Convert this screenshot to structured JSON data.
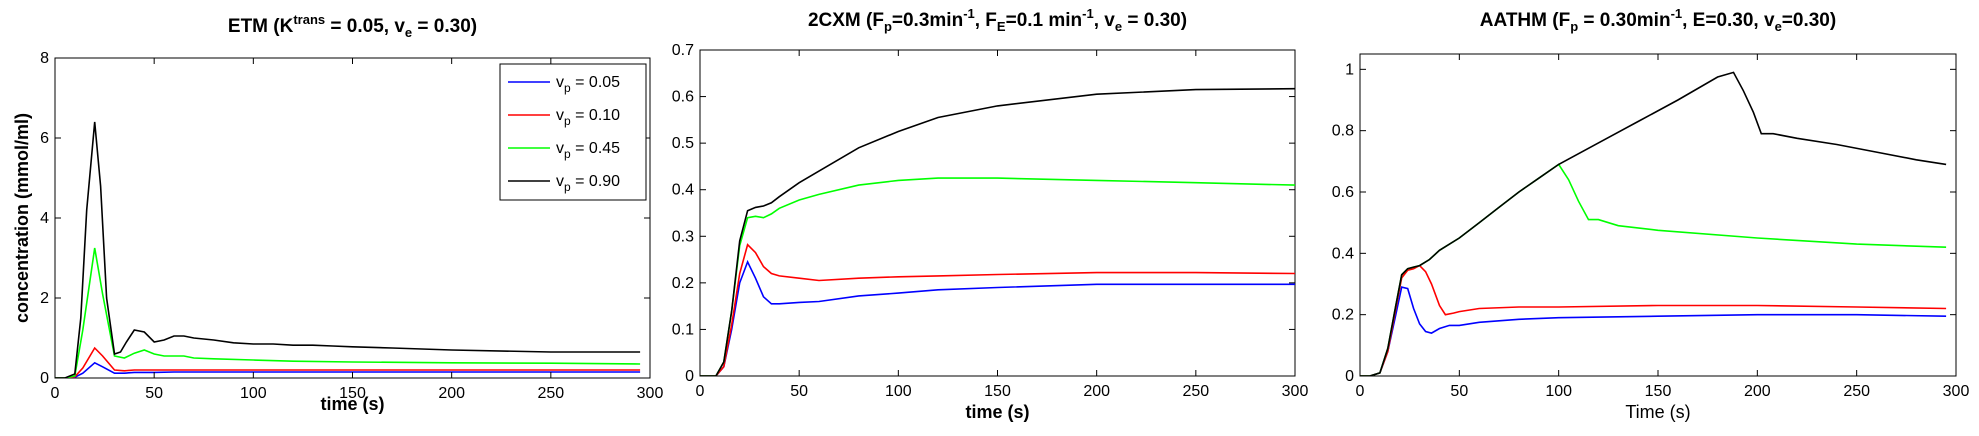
{
  "chart_data": [
    {
      "type": "line",
      "title_parts": [
        "ETM  (K",
        "trans",
        " = 0.05, v",
        "e",
        " = 0.30)"
      ],
      "xlabel": "time (s)",
      "ylabel": "concentration (mmol/ml)",
      "xlim": [
        0,
        300
      ],
      "ylim": [
        0,
        8
      ],
      "xticks": [
        0,
        50,
        100,
        150,
        200,
        250,
        300
      ],
      "yticks": [
        0,
        2,
        4,
        6,
        8
      ],
      "xtick_labels": [
        "0",
        "50",
        "100",
        "150",
        "200",
        "250",
        "300"
      ],
      "ytick_labels": [
        "0",
        "2",
        "4",
        "6",
        "8"
      ],
      "legend": {
        "placement": "top-right",
        "entries": [
          {
            "base": "v",
            "sub": "p",
            "rest": " = 0.05",
            "color": "#0000ff"
          },
          {
            "base": "v",
            "sub": "p",
            "rest": " = 0.10",
            "color": "#ff0000"
          },
          {
            "base": "v",
            "sub": "p",
            "rest": " = 0.45",
            "color": "#00ff00"
          },
          {
            "base": "v",
            "sub": "p",
            "rest": " = 0.90",
            "color": "#000000"
          }
        ]
      },
      "series": [
        {
          "name": "vp = 0.05",
          "color": "#0000ff",
          "x": [
            0,
            5,
            10,
            14,
            20,
            24,
            30,
            35,
            40,
            50,
            60,
            80,
            100,
            150,
            200,
            250,
            295
          ],
          "y": [
            0,
            0,
            0.02,
            0.12,
            0.38,
            0.28,
            0.12,
            0.12,
            0.14,
            0.14,
            0.15,
            0.15,
            0.15,
            0.15,
            0.15,
            0.15,
            0.15
          ]
        },
        {
          "name": "vp = 0.10",
          "color": "#ff0000",
          "x": [
            0,
            5,
            10,
            14,
            20,
            24,
            30,
            35,
            40,
            50,
            60,
            80,
            100,
            150,
            200,
            250,
            295
          ],
          "y": [
            0,
            0,
            0.03,
            0.25,
            0.75,
            0.55,
            0.2,
            0.18,
            0.2,
            0.2,
            0.2,
            0.2,
            0.2,
            0.2,
            0.2,
            0.2,
            0.2
          ]
        },
        {
          "name": "vp = 0.45",
          "color": "#00ff00",
          "x": [
            0,
            5,
            10,
            14,
            20,
            24,
            30,
            35,
            40,
            45,
            50,
            55,
            60,
            65,
            70,
            80,
            100,
            120,
            150,
            200,
            250,
            295
          ],
          "y": [
            0,
            0,
            0.05,
            1.2,
            3.25,
            2.1,
            0.55,
            0.5,
            0.62,
            0.7,
            0.6,
            0.55,
            0.55,
            0.55,
            0.5,
            0.48,
            0.45,
            0.42,
            0.4,
            0.38,
            0.37,
            0.35
          ]
        },
        {
          "name": "vp = 0.90",
          "color": "#000000",
          "x": [
            0,
            5,
            10,
            13,
            16,
            20,
            23,
            26,
            30,
            33,
            36,
            40,
            45,
            50,
            55,
            60,
            65,
            70,
            80,
            90,
            100,
            110,
            120,
            130,
            140,
            150,
            170,
            200,
            250,
            295
          ],
          "y": [
            0,
            0,
            0.1,
            1.5,
            4.2,
            6.4,
            4.8,
            2.0,
            0.6,
            0.65,
            0.9,
            1.2,
            1.15,
            0.9,
            0.95,
            1.05,
            1.05,
            1.0,
            0.95,
            0.88,
            0.85,
            0.85,
            0.82,
            0.82,
            0.8,
            0.78,
            0.75,
            0.7,
            0.65,
            0.65
          ]
        }
      ]
    },
    {
      "type": "line",
      "title_parts": [
        "2CXM   (F",
        "p",
        "=0.3min",
        "-1",
        ", F",
        "E",
        "=0.1 min",
        "-1",
        ", v",
        "e",
        " = 0.30)"
      ],
      "xlabel": "time (s)",
      "ylabel": "",
      "xlim": [
        0,
        300
      ],
      "ylim": [
        0,
        0.7
      ],
      "xticks": [
        0,
        50,
        100,
        150,
        200,
        250,
        300
      ],
      "yticks": [
        0,
        0.1,
        0.2,
        0.3,
        0.4,
        0.5,
        0.6,
        0.7
      ],
      "xtick_labels": [
        "0",
        "50",
        "100",
        "150",
        "200",
        "250",
        "300"
      ],
      "ytick_labels": [
        "0",
        "0.1",
        "0.2",
        "0.3",
        "0.4",
        "0.5",
        "0.6",
        "0.7"
      ],
      "series": [
        {
          "name": "vp = 0.05",
          "color": "#0000ff",
          "x": [
            0,
            8,
            12,
            16,
            20,
            24,
            28,
            32,
            36,
            40,
            50,
            60,
            80,
            100,
            120,
            150,
            200,
            250,
            300
          ],
          "y": [
            0,
            0,
            0.02,
            0.1,
            0.2,
            0.245,
            0.21,
            0.17,
            0.155,
            0.155,
            0.158,
            0.16,
            0.172,
            0.178,
            0.185,
            0.19,
            0.197,
            0.197,
            0.197
          ]
        },
        {
          "name": "vp = 0.10",
          "color": "#ff0000",
          "x": [
            0,
            8,
            12,
            16,
            20,
            24,
            28,
            32,
            36,
            40,
            50,
            60,
            80,
            100,
            120,
            150,
            200,
            250,
            300
          ],
          "y": [
            0,
            0,
            0.02,
            0.11,
            0.22,
            0.282,
            0.265,
            0.235,
            0.22,
            0.215,
            0.21,
            0.205,
            0.21,
            0.213,
            0.215,
            0.218,
            0.222,
            0.222,
            0.22
          ]
        },
        {
          "name": "vp = 0.45",
          "color": "#00ff00",
          "x": [
            0,
            8,
            12,
            16,
            20,
            24,
            28,
            32,
            36,
            40,
            50,
            60,
            80,
            100,
            120,
            150,
            200,
            250,
            300
          ],
          "y": [
            0,
            0,
            0.03,
            0.14,
            0.28,
            0.34,
            0.343,
            0.34,
            0.348,
            0.36,
            0.378,
            0.39,
            0.41,
            0.42,
            0.425,
            0.425,
            0.42,
            0.415,
            0.41
          ]
        },
        {
          "name": "vp = 0.90",
          "color": "#000000",
          "x": [
            0,
            8,
            12,
            16,
            20,
            24,
            28,
            32,
            36,
            40,
            50,
            60,
            80,
            100,
            120,
            150,
            200,
            250,
            300
          ],
          "y": [
            0,
            0,
            0.03,
            0.14,
            0.29,
            0.355,
            0.362,
            0.365,
            0.372,
            0.385,
            0.415,
            0.44,
            0.49,
            0.525,
            0.555,
            0.58,
            0.605,
            0.615,
            0.617
          ]
        }
      ]
    },
    {
      "type": "line",
      "title_parts": [
        "AATHM   (F",
        "p",
        " = 0.30min",
        "-1",
        ",  E=0.30,  v",
        "e",
        "=0.30)"
      ],
      "xlabel": "Time (s)",
      "ylabel": "",
      "xlim": [
        0,
        300
      ],
      "ylim": [
        0,
        1.05
      ],
      "xticks": [
        0,
        50,
        100,
        150,
        200,
        250,
        300
      ],
      "yticks": [
        0,
        0.2,
        0.4,
        0.6,
        0.8,
        1
      ],
      "xtick_labels": [
        "0",
        "50",
        "100",
        "150",
        "200",
        "250",
        "300"
      ],
      "ytick_labels": [
        "0",
        "0.2",
        "0.4",
        "0.6",
        "0.8",
        "1"
      ],
      "series": [
        {
          "name": "vp = 0.05",
          "color": "#0000ff",
          "x": [
            0,
            5,
            10,
            14,
            18,
            21,
            24,
            27,
            30,
            33,
            36,
            40,
            45,
            50,
            60,
            80,
            100,
            150,
            200,
            250,
            295
          ],
          "y": [
            0,
            0,
            0.01,
            0.08,
            0.2,
            0.29,
            0.285,
            0.22,
            0.17,
            0.145,
            0.14,
            0.155,
            0.165,
            0.165,
            0.175,
            0.185,
            0.19,
            0.195,
            0.2,
            0.2,
            0.195
          ]
        },
        {
          "name": "vp = 0.10",
          "color": "#ff0000",
          "x": [
            0,
            5,
            10,
            14,
            18,
            21,
            24,
            27,
            30,
            33,
            36,
            40,
            43,
            47,
            50,
            60,
            80,
            100,
            150,
            200,
            250,
            295
          ],
          "y": [
            0,
            0,
            0.01,
            0.08,
            0.22,
            0.32,
            0.345,
            0.35,
            0.36,
            0.34,
            0.3,
            0.23,
            0.2,
            0.205,
            0.21,
            0.22,
            0.225,
            0.225,
            0.23,
            0.23,
            0.225,
            0.22
          ]
        },
        {
          "name": "vp = 0.45",
          "color": "#00ff00",
          "x": [
            0,
            5,
            10,
            14,
            18,
            21,
            24,
            27,
            30,
            35,
            40,
            50,
            60,
            70,
            80,
            90,
            100,
            105,
            110,
            115,
            120,
            130,
            150,
            200,
            250,
            295
          ],
          "y": [
            0,
            0,
            0.01,
            0.09,
            0.23,
            0.33,
            0.35,
            0.355,
            0.36,
            0.38,
            0.41,
            0.45,
            0.5,
            0.55,
            0.6,
            0.645,
            0.69,
            0.64,
            0.57,
            0.51,
            0.51,
            0.49,
            0.475,
            0.45,
            0.43,
            0.42
          ]
        },
        {
          "name": "vp = 0.90",
          "color": "#000000",
          "x": [
            0,
            5,
            10,
            14,
            18,
            21,
            24,
            27,
            30,
            35,
            40,
            50,
            60,
            70,
            80,
            90,
            100,
            120,
            140,
            160,
            180,
            188,
            193,
            198,
            202,
            208,
            220,
            240,
            260,
            280,
            295
          ],
          "y": [
            0,
            0,
            0.01,
            0.09,
            0.23,
            0.33,
            0.35,
            0.355,
            0.36,
            0.38,
            0.41,
            0.45,
            0.5,
            0.55,
            0.6,
            0.645,
            0.69,
            0.76,
            0.83,
            0.9,
            0.975,
            0.99,
            0.93,
            0.86,
            0.79,
            0.79,
            0.775,
            0.755,
            0.73,
            0.705,
            0.69
          ]
        }
      ]
    }
  ]
}
